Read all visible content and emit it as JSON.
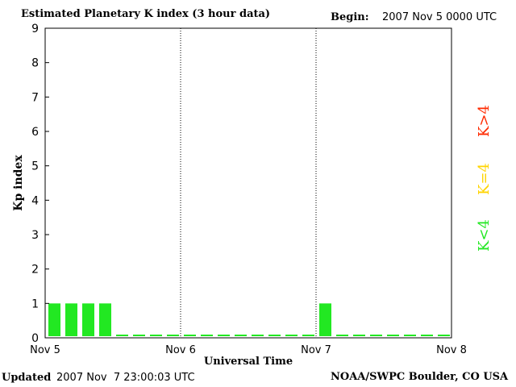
{
  "header": {
    "title": "Estimated Planetary K index (3 hour data)",
    "begin_label": "Begin:",
    "begin_value": "2007 Nov 5 0000 UTC"
  },
  "footer": {
    "updated_label": "Updated",
    "updated_value": "2007 Nov  7 23:00:03 UTC",
    "credit": "NOAA/SWPC Boulder, CO USA"
  },
  "legend": {
    "items": [
      {
        "label": "K<4",
        "color": "#22e822"
      },
      {
        "label": "K=4",
        "color": "#ffd400"
      },
      {
        "label": "K>4",
        "color": "#ff2a00"
      }
    ]
  },
  "chart_data": {
    "type": "bar",
    "title": "Estimated Planetary K index (3 hour data)",
    "xlabel": "Universal Time",
    "ylabel": "Kp index",
    "ylim": [
      0,
      9
    ],
    "yticks": [
      0,
      1,
      2,
      3,
      4,
      5,
      6,
      7,
      8,
      9
    ],
    "x_tick_labels": [
      "Nov 5",
      "Nov 6",
      "Nov 7",
      "Nov 8"
    ],
    "bar_color": "#22e822",
    "values": [
      1,
      1,
      1,
      1,
      0,
      0,
      0,
      0,
      0,
      0,
      0,
      0,
      0,
      0,
      0,
      0,
      1,
      0,
      0,
      0,
      0,
      0,
      0,
      0
    ]
  }
}
